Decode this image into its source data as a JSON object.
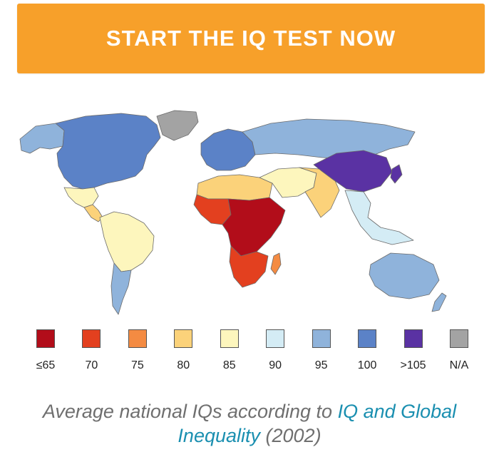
{
  "cta": {
    "label": "START THE IQ TEST NOW",
    "color": "#f7a02a"
  },
  "map": {
    "title": "",
    "regions": [
      {
        "name": "North America",
        "band": "100",
        "color": "#5b82c7"
      },
      {
        "name": "Alaska",
        "band": "95",
        "color": "#8fb3db"
      },
      {
        "name": "Greenland",
        "band": "N/A",
        "color": "#a3a3a3"
      },
      {
        "name": "Mexico",
        "band": "85",
        "color": "#fdf6bd"
      },
      {
        "name": "Central America",
        "band": "80",
        "color": "#fbd27a"
      },
      {
        "name": "South America",
        "band": "85",
        "color": "#fdf6bd"
      },
      {
        "name": "Southern Cone",
        "band": "95",
        "color": "#8fb3db"
      },
      {
        "name": "Europe",
        "band": "100",
        "color": "#5b82c7"
      },
      {
        "name": "Russia",
        "band": "95",
        "color": "#8fb3db"
      },
      {
        "name": "North Africa",
        "band": "80",
        "color": "#fbd27a"
      },
      {
        "name": "West Africa",
        "band": "70",
        "color": "#e3401f"
      },
      {
        "name": "Central Africa",
        "band": "≤65",
        "color": "#b20d1a"
      },
      {
        "name": "Southern Africa",
        "band": "70",
        "color": "#e3401f"
      },
      {
        "name": "Middle East",
        "band": "85",
        "color": "#fdf6bd"
      },
      {
        "name": "South Asia",
        "band": "80",
        "color": "#fbd27a"
      },
      {
        "name": "East Asia",
        "band": ">105",
        "color": "#5a32a3"
      },
      {
        "name": "Southeast Asia",
        "band": "90",
        "color": "#d4ecf5"
      },
      {
        "name": "Australia",
        "band": "95",
        "color": "#8fb3db"
      },
      {
        "name": "Madagascar",
        "band": "75",
        "color": "#f48b42"
      }
    ]
  },
  "legend": [
    {
      "label": "≤65",
      "color": "#b20d1a"
    },
    {
      "label": "70",
      "color": "#e3401f"
    },
    {
      "label": "75",
      "color": "#f48b42"
    },
    {
      "label": "80",
      "color": "#fbd27a"
    },
    {
      "label": "85",
      "color": "#fdf6bd"
    },
    {
      "label": "90",
      "color": "#d4ecf5"
    },
    {
      "label": "95",
      "color": "#8fb3db"
    },
    {
      "label": "100",
      "color": "#5b82c7"
    },
    {
      "label": ">105",
      "color": "#5a32a3"
    },
    {
      "label": "N/A",
      "color": "#a3a3a3"
    }
  ],
  "caption": {
    "prefix": "Average national IQs according to ",
    "link": "IQ and Global Inequality",
    "suffix": " (2002)"
  }
}
